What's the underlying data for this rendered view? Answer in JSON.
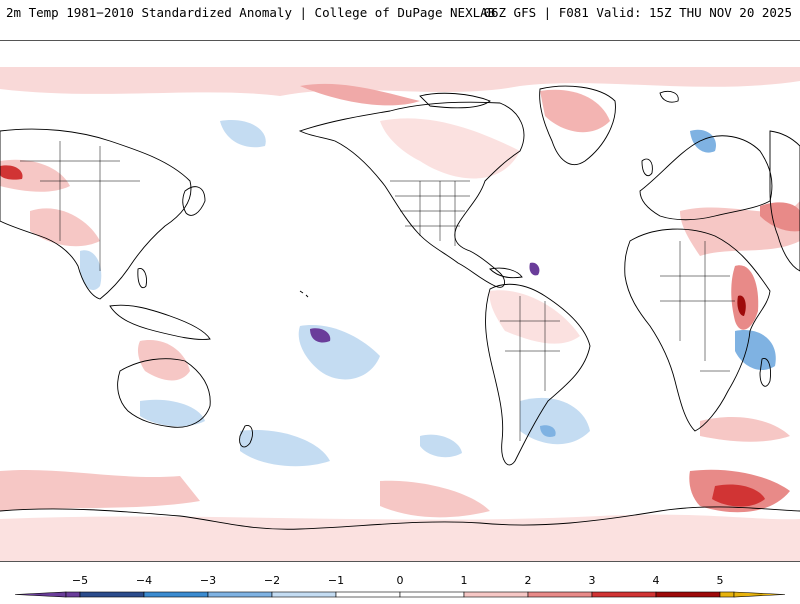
{
  "header": {
    "left_title": "2m Temp 1981−2010 Standardized Anomaly | College of DuPage NEXLAB",
    "right_title": "06Z GFS | F081 Valid: 15Z THU NOV 20 2025"
  },
  "map": {
    "projection": "equirectangular, Pacific-centered",
    "variable": "2m temperature standardized anomaly"
  },
  "legend": {
    "ticks": [
      "−5",
      "−4",
      "−3",
      "−2",
      "−1",
      "0",
      "1",
      "2",
      "3",
      "4",
      "5"
    ],
    "colors": [
      "#6a3d9a",
      "#2b4c8c",
      "#3b8bd0",
      "#7fb2e2",
      "#c4dcf2",
      "#ffffff",
      "#ffffff",
      "#f6c7c5",
      "#e88a88",
      "#d13434",
      "#9e0a0a",
      "#e7b30d"
    ]
  }
}
